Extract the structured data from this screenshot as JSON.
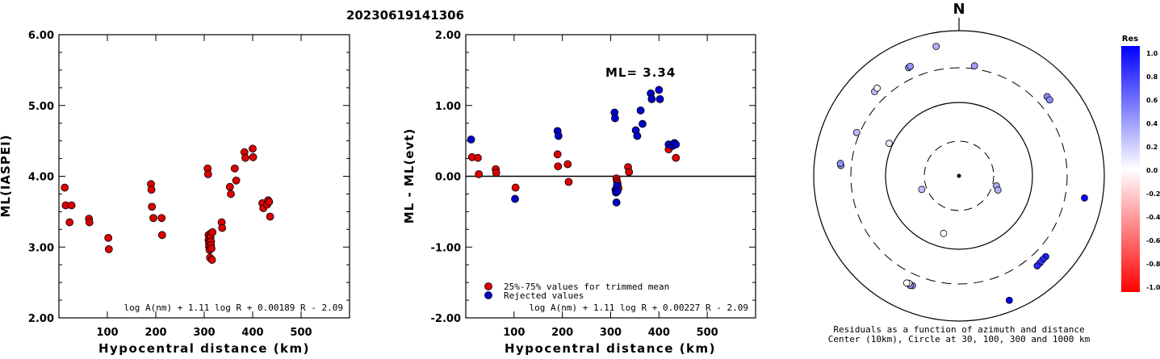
{
  "header": {
    "event_id": "20230619141306"
  },
  "chart_data": [
    {
      "type": "scatter",
      "xlabel": "Hypocentral distance (km)",
      "ylabel": "ML(IASPEI)",
      "xlim": [
        0,
        600
      ],
      "ylim": [
        2.0,
        6.0
      ],
      "x_ticks": [
        "100",
        "200",
        "300",
        "400",
        "500"
      ],
      "y_ticks": [
        "2.00",
        "3.00",
        "4.00",
        "5.00",
        "6.00"
      ],
      "formula": "log A(nm) + 1.11 log R + 0.00189 R - 2.09",
      "marker_color": "#dd0000",
      "points": [
        [
          12,
          3.84
        ],
        [
          14,
          3.59
        ],
        [
          22,
          3.35
        ],
        [
          26,
          3.59
        ],
        [
          62,
          3.4
        ],
        [
          63,
          3.35
        ],
        [
          102,
          3.13
        ],
        [
          103,
          2.97
        ],
        [
          190,
          3.89
        ],
        [
          191,
          3.81
        ],
        [
          192,
          3.57
        ],
        [
          195,
          3.41
        ],
        [
          212,
          3.41
        ],
        [
          213,
          3.17
        ],
        [
          307,
          4.11
        ],
        [
          308,
          4.03
        ],
        [
          309,
          3.17
        ],
        [
          309,
          3.1
        ],
        [
          310,
          3.06
        ],
        [
          310,
          3.01
        ],
        [
          311,
          2.96
        ],
        [
          312,
          2.85
        ],
        [
          313,
          3.19
        ],
        [
          313,
          3.14
        ],
        [
          314,
          3.08
        ],
        [
          314,
          3.03
        ],
        [
          315,
          2.98
        ],
        [
          316,
          2.82
        ],
        [
          317,
          3.21
        ],
        [
          336,
          3.35
        ],
        [
          337,
          3.27
        ],
        [
          353,
          3.85
        ],
        [
          355,
          3.75
        ],
        [
          363,
          4.11
        ],
        [
          366,
          3.94
        ],
        [
          383,
          4.34
        ],
        [
          385,
          4.26
        ],
        [
          400,
          4.39
        ],
        [
          401,
          4.27
        ],
        [
          420,
          3.62
        ],
        [
          422,
          3.55
        ],
        [
          430,
          3.6
        ],
        [
          432,
          3.66
        ],
        [
          434,
          3.64
        ],
        [
          436,
          3.43
        ]
      ]
    },
    {
      "type": "scatter",
      "xlabel": "Hypocentral distance (km)",
      "ylabel": "ML - ML(evt)",
      "xlim": [
        0,
        600
      ],
      "ylim": [
        -2.0,
        2.0
      ],
      "x_ticks": [
        "100",
        "200",
        "300",
        "400",
        "500"
      ],
      "y_ticks": [
        "-2.00",
        "-1.00",
        "0.00",
        "1.00",
        "2.00"
      ],
      "annotation": "ML= 3.34",
      "formula": "log A(nm) + 1.11 log R + 0.00227 R - 2.09",
      "reference_line_y": 0,
      "legend": [
        {
          "label": "25%-75% values for trimmed mean",
          "color": "#dd0000"
        },
        {
          "label": "Rejected values",
          "color": "#0000cc"
        }
      ],
      "series": [
        {
          "name": "25%-75% values for trimmed mean",
          "color": "#dd0000",
          "points": [
            [
              13,
              0.27
            ],
            [
              25,
              0.26
            ],
            [
              27,
              0.03
            ],
            [
              62,
              0.1
            ],
            [
              63,
              0.05
            ],
            [
              103,
              -0.16
            ],
            [
              190,
              0.31
            ],
            [
              191,
              0.14
            ],
            [
              211,
              0.17
            ],
            [
              213,
              -0.08
            ],
            [
              312,
              -0.03
            ],
            [
              313,
              -0.07
            ],
            [
              314,
              -0.1
            ],
            [
              315,
              -0.14
            ],
            [
              316,
              -0.17
            ],
            [
              336,
              0.13
            ],
            [
              338,
              0.06
            ],
            [
              420,
              0.38
            ],
            [
              435,
              0.26
            ]
          ]
        },
        {
          "name": "Rejected values",
          "color": "#0000cc",
          "points": [
            [
              11,
              0.52
            ],
            [
              102,
              -0.32
            ],
            [
              190,
              0.64
            ],
            [
              192,
              0.57
            ],
            [
              308,
              0.9
            ],
            [
              309,
              0.82
            ],
            [
              310,
              -0.19
            ],
            [
              311,
              -0.23
            ],
            [
              312,
              -0.37
            ],
            [
              313,
              -0.13
            ],
            [
              314,
              -0.21
            ],
            [
              352,
              0.65
            ],
            [
              355,
              0.57
            ],
            [
              362,
              0.93
            ],
            [
              366,
              0.74
            ],
            [
              383,
              1.17
            ],
            [
              385,
              1.09
            ],
            [
              400,
              1.22
            ],
            [
              402,
              1.09
            ],
            [
              420,
              0.45
            ],
            [
              428,
              0.43
            ],
            [
              432,
              0.47
            ],
            [
              435,
              0.45
            ]
          ]
        }
      ]
    },
    {
      "type": "polar-scatter",
      "north_label": "N",
      "caption_line1": "Residuals as a function of azimuth and distance",
      "caption_line2": "Center (10km), Circle at 30, 100, 300 and 1000 km",
      "ring_distances_km": [
        30,
        100,
        300,
        1000
      ],
      "colorbar_title": "Res",
      "colorbar_ticks": [
        "1.0",
        "0.8",
        "0.6",
        "0.4",
        "0.2",
        "0.0",
        "-0.2",
        "-0.4",
        "-0.6",
        "-0.8",
        "-1.0"
      ],
      "points": [
        {
          "az": -85,
          "dist": 420,
          "res": 0.4
        },
        {
          "az": -84,
          "dist": 430,
          "res": 0.43
        },
        {
          "az": -67,
          "dist": 330,
          "res": 0.28
        },
        {
          "az": -65,
          "dist": 112,
          "res": 0.1
        },
        {
          "az": -45,
          "dist": 430,
          "res": 0.26
        },
        {
          "az": -43,
          "dist": 440,
          "res": 0.05
        },
        {
          "az": -25,
          "dist": 432,
          "res": 0.4
        },
        {
          "az": -24,
          "dist": 440,
          "res": 0.42
        },
        {
          "az": -10,
          "dist": 640,
          "res": 0.31
        },
        {
          "az": 8,
          "dist": 330,
          "res": 0.37
        },
        {
          "az": 48,
          "dist": 420,
          "res": 0.47
        },
        {
          "az": 50,
          "dist": 418,
          "res": 0.45
        },
        {
          "az": 100,
          "dist": 560,
          "res": 1.0
        },
        {
          "az": 133,
          "dist": 420,
          "res": 0.88
        },
        {
          "az": 135,
          "dist": 418,
          "res": 0.84
        },
        {
          "az": 137,
          "dist": 425,
          "res": 0.8
        },
        {
          "az": 139,
          "dist": 430,
          "res": 0.83
        },
        {
          "az": 158,
          "dist": 700,
          "res": 1.0
        },
        {
          "az": -157,
          "dist": 430,
          "res": 0.4
        },
        {
          "az": -156,
          "dist": 440,
          "res": 0.42
        },
        {
          "az": -155,
          "dist": 420,
          "res": 0.02
        },
        {
          "az": -154,
          "dist": 430,
          "res": 0.0
        },
        {
          "az": -165,
          "dist": 65,
          "res": 0.01
        },
        {
          "az": 105,
          "dist": 34,
          "res": 0.32
        },
        {
          "az": 110,
          "dist": 37,
          "res": 0.3
        },
        {
          "az": -110,
          "dist": 35,
          "res": 0.25
        }
      ]
    }
  ]
}
